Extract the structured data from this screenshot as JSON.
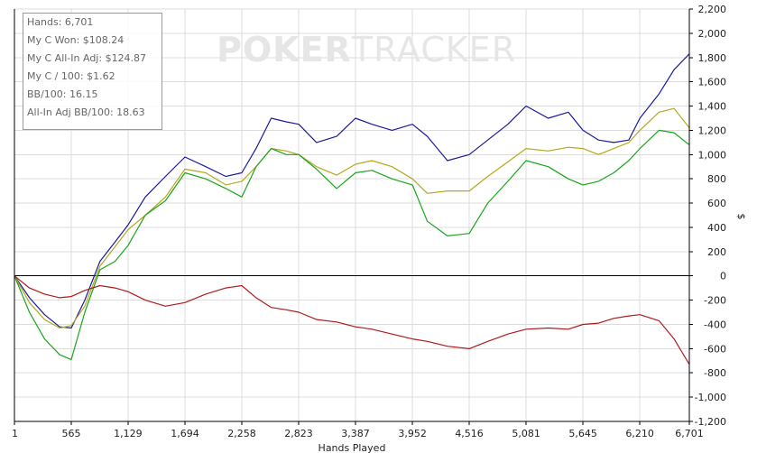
{
  "watermark": {
    "bold": "POKER",
    "light": "TRACKER"
  },
  "stats": {
    "hands": "Hands: 6,701",
    "won": "My C Won: $108.24",
    "allin": "My C All-In Adj: $124.87",
    "per100": "My C / 100: $1.62",
    "bb100": "BB/100: 16.15",
    "allin_bb100": "All-In Adj BB/100: 18.63"
  },
  "chart_data": {
    "type": "line",
    "title": "",
    "xlabel": "Hands Played",
    "ylabel": "$",
    "xlim": [
      1,
      6701
    ],
    "ylim": [
      -1200,
      2200
    ],
    "x_ticks": [
      1,
      565,
      1129,
      1694,
      2258,
      2823,
      3387,
      3952,
      4516,
      5081,
      5645,
      6210,
      6701
    ],
    "x_tick_labels": [
      "1",
      "565",
      "1,129",
      "1,694",
      "2,258",
      "2,823",
      "3,387",
      "3,952",
      "4,516",
      "5,081",
      "5,645",
      "6,210",
      "6,701"
    ],
    "y_ticks": [
      -1200,
      -1000,
      -800,
      -600,
      -400,
      -200,
      0,
      200,
      400,
      600,
      800,
      1000,
      1200,
      1400,
      1600,
      1800,
      2000,
      2200
    ],
    "y_tick_labels": [
      "-1,200",
      "-1,000",
      "-800",
      "-600",
      "-400",
      "-200",
      "0",
      "200",
      "400",
      "600",
      "800",
      "1,000",
      "1,200",
      "1,400",
      "1,600",
      "1,800",
      "2,000",
      "2,200"
    ],
    "grid": true,
    "series": [
      {
        "color": "#1a1aa0",
        "x": [
          1,
          150,
          300,
          450,
          565,
          700,
          850,
          1000,
          1129,
          1300,
          1500,
          1694,
          1900,
          2100,
          2258,
          2400,
          2550,
          2700,
          2823,
          3000,
          3200,
          3387,
          3550,
          3750,
          3952,
          4100,
          4300,
          4516,
          4700,
          4900,
          5081,
          5300,
          5500,
          5645,
          5800,
          5950,
          6100,
          6210,
          6400,
          6550,
          6701
        ],
        "y": [
          0,
          -180,
          -320,
          -420,
          -430,
          -200,
          120,
          280,
          420,
          650,
          820,
          980,
          900,
          820,
          850,
          1050,
          1300,
          1270,
          1250,
          1100,
          1150,
          1300,
          1250,
          1200,
          1250,
          1150,
          950,
          1000,
          1120,
          1250,
          1400,
          1300,
          1350,
          1200,
          1120,
          1100,
          1120,
          1300,
          1500,
          1700,
          1830
        ]
      },
      {
        "color": "#b5a81e",
        "x": [
          1,
          150,
          300,
          450,
          565,
          700,
          850,
          1000,
          1129,
          1300,
          1500,
          1694,
          1900,
          2100,
          2258,
          2400,
          2550,
          2700,
          2823,
          3000,
          3200,
          3387,
          3550,
          3750,
          3952,
          4100,
          4300,
          4516,
          4700,
          4900,
          5081,
          5300,
          5500,
          5645,
          5800,
          5950,
          6100,
          6210,
          6400,
          6550,
          6701
        ],
        "y": [
          0,
          -220,
          -360,
          -430,
          -410,
          -250,
          80,
          240,
          380,
          500,
          650,
          880,
          850,
          750,
          780,
          900,
          1050,
          1030,
          1000,
          900,
          830,
          920,
          950,
          900,
          800,
          680,
          700,
          700,
          820,
          940,
          1050,
          1030,
          1060,
          1050,
          1000,
          1050,
          1100,
          1200,
          1350,
          1380,
          1220
        ]
      },
      {
        "color": "#1aa51a",
        "x": [
          1,
          150,
          300,
          450,
          565,
          700,
          850,
          1000,
          1129,
          1300,
          1500,
          1694,
          1900,
          2100,
          2258,
          2400,
          2550,
          2700,
          2823,
          3000,
          3200,
          3387,
          3550,
          3750,
          3952,
          4100,
          4300,
          4516,
          4700,
          4900,
          5081,
          5300,
          5500,
          5645,
          5800,
          5950,
          6100,
          6210,
          6400,
          6550,
          6701
        ],
        "y": [
          0,
          -300,
          -520,
          -650,
          -690,
          -300,
          50,
          120,
          250,
          500,
          620,
          850,
          800,
          720,
          650,
          900,
          1050,
          1000,
          1000,
          880,
          720,
          850,
          870,
          800,
          750,
          450,
          330,
          350,
          600,
          780,
          950,
          900,
          800,
          750,
          780,
          850,
          950,
          1050,
          1200,
          1180,
          1080
        ]
      },
      {
        "color": "#b01a1a",
        "x": [
          1,
          150,
          300,
          450,
          565,
          700,
          850,
          1000,
          1129,
          1300,
          1500,
          1694,
          1900,
          2100,
          2258,
          2400,
          2550,
          2700,
          2823,
          3000,
          3200,
          3387,
          3550,
          3750,
          3952,
          4100,
          4300,
          4516,
          4700,
          4900,
          5081,
          5300,
          5500,
          5645,
          5800,
          5950,
          6100,
          6210,
          6400,
          6550,
          6701
        ],
        "y": [
          0,
          -100,
          -150,
          -180,
          -170,
          -120,
          -80,
          -100,
          -130,
          -200,
          -250,
          -220,
          -150,
          -100,
          -80,
          -180,
          -260,
          -280,
          -300,
          -360,
          -380,
          -420,
          -440,
          -480,
          -520,
          -540,
          -580,
          -600,
          -540,
          -480,
          -440,
          -430,
          -440,
          -400,
          -390,
          -350,
          -330,
          -320,
          -370,
          -520,
          -730
        ]
      }
    ]
  }
}
